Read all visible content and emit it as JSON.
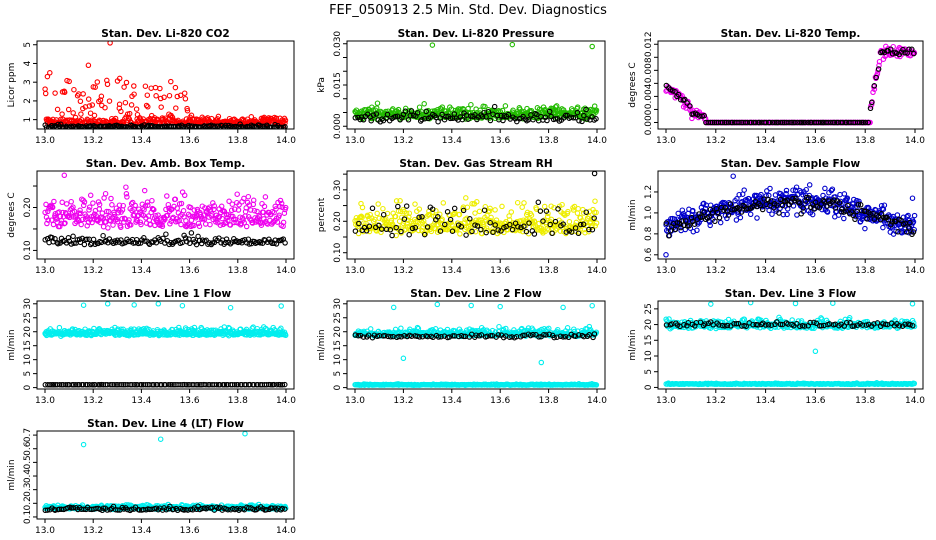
{
  "title": "FEF_050913  2.5 Min. Std. Dev. Diagnostics",
  "chart_data": [
    {
      "type": "scatter",
      "title": "Stan. Dev. Li-820 CO2",
      "ylabel": "Licor ppm",
      "xlim": [
        13.0,
        14.0
      ],
      "ylim": [
        0.5,
        5.2
      ],
      "xticks": [
        "13.0",
        "13.2",
        "13.4",
        "13.6",
        "13.8",
        "14.0"
      ],
      "yticks": [
        1,
        2,
        3,
        4,
        5
      ],
      "ytick_labels": [
        "1",
        "2",
        "3",
        "4",
        "5"
      ],
      "series": [
        {
          "name": "red",
          "color": "#ff0000",
          "gen": {
            "seed": 11,
            "n": 430,
            "x0": 13.0,
            "x1": 14.0,
            "base": 0.75,
            "noise": 0.25,
            "spikeRate": 0.35,
            "spikeMax": 2.2,
            "spikeX1": 13.6,
            "outliers": [
              [
                13.01,
                3.3
              ],
              [
                13.02,
                3.5
              ],
              [
                13.27,
                5.1
              ],
              [
                13.31,
                3.2
              ],
              [
                13.18,
                3.9
              ],
              [
                13.12,
                2.6
              ]
            ]
          }
        },
        {
          "name": "black",
          "color": "#000000",
          "gen": {
            "seed": 12,
            "n": 170,
            "x0": 13.0,
            "x1": 14.0,
            "base": 0.58,
            "noise": 0.1
          }
        }
      ]
    },
    {
      "type": "scatter",
      "title": "Stan. Dev. Li-820 Pressure",
      "ylabel": "kPa",
      "xlim": [
        13.0,
        14.0
      ],
      "ylim": [
        -0.001,
        0.031
      ],
      "xticks": [
        "13.0",
        "13.2",
        "13.4",
        "13.6",
        "13.8",
        "14.0"
      ],
      "yticks": [
        0.0,
        0.005,
        0.01,
        0.015,
        0.02,
        0.025,
        0.03
      ],
      "ytick_labels": [
        "0.000",
        "",
        "",
        "0.015",
        "",
        "",
        "0.030"
      ],
      "series": [
        {
          "name": "green",
          "color": "#22bb00",
          "gen": {
            "seed": 21,
            "n": 420,
            "x0": 13.0,
            "x1": 14.0,
            "base": 0.003,
            "noise": 0.0028,
            "outliers": [
              [
                13.32,
                0.0295
              ],
              [
                13.65,
                0.0297
              ],
              [
                13.98,
                0.029
              ]
            ]
          }
        },
        {
          "name": "black",
          "color": "#000000",
          "gen": {
            "seed": 22,
            "n": 120,
            "x0": 13.0,
            "x1": 14.0,
            "base": 0.002,
            "noise": 0.0025
          }
        }
      ]
    },
    {
      "type": "scatter",
      "title": "Stan. Dev. Li-820 Temp.",
      "ylabel": "degrees C",
      "xlim": [
        13.0,
        14.0
      ],
      "ylim": [
        -0.001,
        0.0125
      ],
      "xticks": [
        "13.0",
        "13.2",
        "13.4",
        "13.6",
        "13.8",
        "14.0"
      ],
      "yticks": [
        0.0,
        0.002,
        0.004,
        0.006,
        0.008,
        0.01,
        0.012
      ],
      "ytick_labels": [
        "0.000",
        "",
        "0.004",
        "",
        "0.008",
        "",
        "0.012"
      ],
      "series": [
        {
          "name": "magenta",
          "color": "#ee00ee",
          "gen": {
            "seed": 31,
            "n": 330,
            "x0": 13.0,
            "x1": 14.0,
            "profile": "temp",
            "noise": 0.0009
          }
        },
        {
          "name": "black",
          "color": "#000000",
          "gen": {
            "seed": 32,
            "n": 120,
            "x0": 13.0,
            "x1": 14.0,
            "profile": "temp",
            "noise": 0.0006
          }
        }
      ]
    },
    {
      "type": "scatter",
      "title": "Stan. Dev. Amb. Box Temp.",
      "ylabel": "degrees C",
      "xlim": [
        13.0,
        14.0
      ],
      "ylim": [
        0.08,
        0.285
      ],
      "xticks": [
        "13.0",
        "13.2",
        "13.4",
        "13.6",
        "13.8",
        "14.0"
      ],
      "yticks": [
        0.1,
        0.15,
        0.2,
        0.25
      ],
      "ytick_labels": [
        "0.10",
        "",
        "0.20",
        ""
      ],
      "series": [
        {
          "name": "magenta",
          "color": "#ee00ee",
          "gen": {
            "seed": 41,
            "n": 380,
            "x0": 13.0,
            "x1": 14.0,
            "base": 0.16,
            "noise": 0.045,
            "outliers": [
              [
                13.08,
                0.275
              ]
            ]
          }
        },
        {
          "name": "black",
          "color": "#000000",
          "gen": {
            "seed": 42,
            "n": 150,
            "x0": 13.0,
            "x1": 14.0,
            "base": 0.115,
            "noise": 0.014
          }
        }
      ]
    },
    {
      "type": "scatter",
      "title": "Stan. Dev. Gas Stream RH",
      "ylabel": "percent",
      "xlim": [
        13.0,
        14.0
      ],
      "ylim": [
        0.08,
        0.36
      ],
      "xticks": [
        "13.0",
        "13.2",
        "13.4",
        "13.6",
        "13.8",
        "14.0"
      ],
      "yticks": [
        0.1,
        0.15,
        0.2,
        0.25,
        0.3,
        0.35
      ],
      "ytick_labels": [
        "0.10",
        "",
        "0.20",
        "",
        "0.30",
        ""
      ],
      "series": [
        {
          "name": "yellow",
          "color": "#eeee00",
          "gen": {
            "seed": 51,
            "n": 420,
            "x0": 13.0,
            "x1": 14.0,
            "base": 0.165,
            "noise": 0.06
          }
        },
        {
          "name": "black",
          "color": "#000000",
          "gen": {
            "seed": 52,
            "n": 85,
            "x0": 13.0,
            "x1": 14.0,
            "base": 0.16,
            "noise": 0.055,
            "outliers": [
              [
                13.99,
                0.352
              ]
            ]
          }
        }
      ]
    },
    {
      "type": "scatter",
      "title": "Stan. Dev. Sample Flow",
      "ylabel": "ml/min",
      "xlim": [
        13.0,
        14.0
      ],
      "ylim": [
        0.56,
        1.4
      ],
      "xticks": [
        "13.0",
        "13.2",
        "13.4",
        "13.6",
        "13.8",
        "14.0"
      ],
      "yticks": [
        0.6,
        0.8,
        1.0,
        1.2
      ],
      "ytick_labels": [
        "0.6",
        "0.8",
        "1.0",
        "1.2"
      ],
      "series": [
        {
          "name": "blue",
          "color": "#0000cc",
          "gen": {
            "seed": 61,
            "n": 430,
            "x0": 13.0,
            "x1": 14.0,
            "profile": "arch",
            "base": 0.85,
            "amp": 0.27,
            "noise": 0.1,
            "outliers": [
              [
                13.0,
                0.6
              ],
              [
                13.27,
                1.35
              ],
              [
                13.99,
                1.14
              ]
            ]
          }
        },
        {
          "name": "black",
          "color": "#000000",
          "gen": {
            "seed": 62,
            "n": 140,
            "x0": 13.0,
            "x1": 14.0,
            "profile": "arch",
            "base": 0.85,
            "amp": 0.25,
            "noise": 0.06
          }
        }
      ]
    },
    {
      "type": "scatter",
      "title": "Stan. Dev. Line 1 Flow",
      "ylabel": "ml/min",
      "xlim": [
        13.0,
        14.0
      ],
      "ylim": [
        -0.5,
        31
      ],
      "xticks": [
        "13.0",
        "13.2",
        "13.4",
        "13.6",
        "13.8",
        "14.0"
      ],
      "yticks": [
        0,
        5,
        10,
        15,
        20,
        25,
        30
      ],
      "ytick_labels": [
        "0",
        "5",
        "10",
        "15",
        "20",
        "25",
        "30"
      ],
      "series": [
        {
          "name": "cyan",
          "color": "#00eeee",
          "gen": {
            "seed": 71,
            "n": 460,
            "x0": 13.0,
            "x1": 14.0,
            "base": 18.8,
            "noise": 1.6,
            "outliers": [
              [
                13.16,
                29.5
              ],
              [
                13.26,
                30.0
              ],
              [
                13.37,
                29.6
              ],
              [
                13.47,
                30.0
              ],
              [
                13.57,
                29.3
              ],
              [
                13.77,
                28.6
              ],
              [
                13.98,
                29.2
              ],
              [
                13.62,
                21.5
              ]
            ]
          }
        },
        {
          "name": "black",
          "color": "#000000",
          "gen": {
            "seed": 72,
            "n": 120,
            "x0": 13.0,
            "x1": 14.0,
            "base": 1.0,
            "noise": 0.05
          }
        }
      ]
    },
    {
      "type": "scatter",
      "title": "Stan. Dev. Line 2 Flow",
      "ylabel": "ml/min",
      "xlim": [
        13.0,
        14.0
      ],
      "ylim": [
        -0.5,
        31
      ],
      "xticks": [
        "13.0",
        "13.2",
        "13.4",
        "13.6",
        "13.8",
        "14.0"
      ],
      "yticks": [
        0,
        5,
        10,
        15,
        20,
        25,
        30
      ],
      "ytick_labels": [
        "0",
        "5",
        "10",
        "15",
        "20",
        "25",
        "30"
      ],
      "series": [
        {
          "name": "cyan",
          "color": "#00eeee",
          "gen": {
            "seed": 81,
            "n": 360,
            "x0": 13.0,
            "x1": 14.0,
            "base": 18.6,
            "noise": 1.8,
            "outliers": [
              [
                13.16,
                28.7
              ],
              [
                13.34,
                29.8
              ],
              [
                13.48,
                29.4
              ],
              [
                13.6,
                29.0
              ],
              [
                13.77,
                9.0
              ],
              [
                13.86,
                28.7
              ],
              [
                13.98,
                29.3
              ],
              [
                13.2,
                10.5
              ]
            ]
          }
        },
        {
          "name": "cyan-baseline",
          "color": "#00eeee",
          "gen": {
            "seed": 82,
            "n": 260,
            "x0": 13.0,
            "x1": 14.0,
            "base": 0.9,
            "noise": 0.25
          }
        },
        {
          "name": "black",
          "color": "#000000",
          "gen": {
            "seed": 83,
            "n": 90,
            "x0": 13.0,
            "x1": 14.0,
            "base": 18.0,
            "noise": 0.8
          }
        }
      ]
    },
    {
      "type": "scatter",
      "title": "Stan. Dev. Line 3 Flow",
      "ylabel": "ml/min",
      "xlim": [
        13.0,
        14.0
      ],
      "ylim": [
        -0.5,
        27.5
      ],
      "xticks": [
        "13.0",
        "13.2",
        "13.4",
        "13.6",
        "13.8",
        "14.0"
      ],
      "yticks": [
        0,
        5,
        10,
        15,
        20,
        25
      ],
      "ytick_labels": [
        "0",
        "5",
        "10",
        "15",
        "20",
        "25"
      ],
      "series": [
        {
          "name": "cyan",
          "color": "#00eeee",
          "gen": {
            "seed": 91,
            "n": 360,
            "x0": 13.0,
            "x1": 14.0,
            "base": 19.0,
            "noise": 1.9,
            "outliers": [
              [
                13.18,
                26.5
              ],
              [
                13.34,
                27.0
              ],
              [
                13.52,
                26.7
              ],
              [
                13.67,
                26.8
              ],
              [
                13.99,
                26.6
              ],
              [
                13.6,
                11.5
              ]
            ]
          }
        },
        {
          "name": "cyan-baseline",
          "color": "#00eeee",
          "gen": {
            "seed": 92,
            "n": 260,
            "x0": 13.0,
            "x1": 14.0,
            "base": 1.0,
            "noise": 0.25
          }
        },
        {
          "name": "black",
          "color": "#000000",
          "gen": {
            "seed": 93,
            "n": 90,
            "x0": 13.0,
            "x1": 14.0,
            "base": 19.5,
            "noise": 0.9
          }
        }
      ]
    },
    {
      "type": "scatter",
      "title": "Stan. Dev. Line 4 (LT) Flow",
      "ylabel": "ml/min",
      "xlim": [
        13.0,
        14.0
      ],
      "ylim": [
        0.085,
        0.73
      ],
      "xticks": [
        "13.0",
        "13.2",
        "13.4",
        "13.6",
        "13.8",
        "14.0"
      ],
      "yticks": [
        0.1,
        0.2,
        0.3,
        0.4,
        0.5,
        0.6,
        0.7
      ],
      "ytick_labels": [
        "0.1",
        "0.2",
        "0.3",
        "0.4",
        "0.5",
        "0.6",
        "0.7"
      ],
      "series": [
        {
          "name": "cyan",
          "color": "#00eeee",
          "gen": {
            "seed": 101,
            "n": 420,
            "x0": 13.0,
            "x1": 14.0,
            "base": 0.16,
            "noise": 0.018,
            "outliers": [
              [
                13.16,
                0.63
              ],
              [
                13.48,
                0.67
              ],
              [
                13.83,
                0.71
              ]
            ]
          }
        },
        {
          "name": "black",
          "color": "#000000",
          "gen": {
            "seed": 102,
            "n": 120,
            "x0": 13.0,
            "x1": 14.0,
            "base": 0.15,
            "noise": 0.018
          }
        }
      ]
    }
  ]
}
